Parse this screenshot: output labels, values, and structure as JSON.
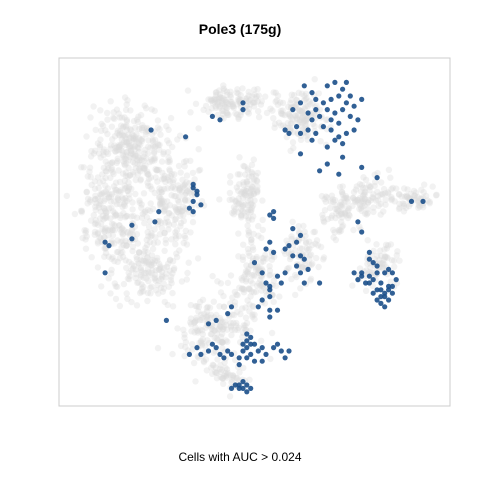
{
  "chart_data": {
    "type": "scatter",
    "title": "Pole3 (175g)",
    "xlabel": "Cells with AUC > 0.024",
    "ylabel": "",
    "xlim": [
      0,
      100
    ],
    "ylim": [
      0,
      100
    ],
    "grid": false,
    "colors": {
      "background_points": "#d9d9d9",
      "highlight_points": "#1b4f8a",
      "frame": "#cccccc"
    },
    "background_clusters": [
      {
        "cx": 18,
        "cy": 75,
        "rx": 10,
        "ry": 13,
        "n": 260
      },
      {
        "cx": 12,
        "cy": 55,
        "rx": 8,
        "ry": 16,
        "n": 220
      },
      {
        "cx": 28,
        "cy": 60,
        "rx": 8,
        "ry": 16,
        "n": 200
      },
      {
        "cx": 22,
        "cy": 38,
        "rx": 9,
        "ry": 10,
        "n": 140
      },
      {
        "cx": 44,
        "cy": 88,
        "rx": 8,
        "ry": 5,
        "n": 120
      },
      {
        "cx": 62,
        "cy": 84,
        "rx": 8,
        "ry": 7,
        "n": 140
      },
      {
        "cx": 48,
        "cy": 60,
        "rx": 4,
        "ry": 10,
        "n": 110
      },
      {
        "cx": 50,
        "cy": 38,
        "rx": 6,
        "ry": 10,
        "n": 120
      },
      {
        "cx": 40,
        "cy": 22,
        "rx": 11,
        "ry": 9,
        "n": 170
      },
      {
        "cx": 42,
        "cy": 8,
        "rx": 5,
        "ry": 4,
        "n": 50
      },
      {
        "cx": 62,
        "cy": 44,
        "rx": 5,
        "ry": 9,
        "n": 80
      },
      {
        "cx": 72,
        "cy": 55,
        "rx": 5,
        "ry": 7,
        "n": 60
      },
      {
        "cx": 80,
        "cy": 60,
        "rx": 8,
        "ry": 5,
        "n": 100
      },
      {
        "cx": 92,
        "cy": 60,
        "rx": 6,
        "ry": 3,
        "n": 50
      },
      {
        "cx": 82,
        "cy": 40,
        "rx": 6,
        "ry": 6,
        "n": 70
      }
    ],
    "highlight_points": [
      [
        63,
        93
      ],
      [
        65,
        91
      ],
      [
        66,
        89
      ],
      [
        68,
        88
      ],
      [
        70,
        89
      ],
      [
        72,
        90
      ],
      [
        73,
        92
      ],
      [
        74,
        88
      ],
      [
        76,
        87
      ],
      [
        73,
        86
      ],
      [
        71,
        85
      ],
      [
        69,
        86
      ],
      [
        67,
        84
      ],
      [
        65,
        83
      ],
      [
        64,
        85
      ],
      [
        66,
        86
      ],
      [
        70,
        83
      ],
      [
        72,
        82
      ],
      [
        75,
        84
      ],
      [
        77,
        83
      ],
      [
        76,
        80
      ],
      [
        74,
        79
      ],
      [
        72,
        78
      ],
      [
        70,
        80
      ],
      [
        68,
        81
      ],
      [
        64,
        80
      ],
      [
        62,
        79
      ],
      [
        61,
        81
      ],
      [
        59,
        79
      ],
      [
        58,
        80
      ],
      [
        60,
        86
      ],
      [
        62,
        88
      ],
      [
        69,
        93
      ],
      [
        71,
        94
      ],
      [
        74,
        94
      ],
      [
        75,
        90
      ],
      [
        78,
        89
      ],
      [
        71,
        77
      ],
      [
        73,
        76
      ],
      [
        69,
        75
      ],
      [
        66,
        79
      ],
      [
        65,
        77
      ],
      [
        62,
        73
      ],
      [
        73,
        72
      ],
      [
        78,
        69
      ],
      [
        69,
        70
      ],
      [
        67,
        68
      ],
      [
        72,
        67
      ],
      [
        23,
        80
      ],
      [
        32,
        78
      ],
      [
        39,
        84
      ],
      [
        47,
        86
      ],
      [
        47,
        88
      ],
      [
        41,
        83
      ],
      [
        34,
        64
      ],
      [
        35,
        62
      ],
      [
        34,
        59
      ],
      [
        33,
        57
      ],
      [
        34,
        56
      ],
      [
        36,
        58
      ],
      [
        35,
        61
      ],
      [
        34,
        63
      ],
      [
        25,
        56
      ],
      [
        24,
        53
      ],
      [
        18,
        52
      ],
      [
        18,
        48
      ],
      [
        11,
        47
      ],
      [
        12,
        46
      ],
      [
        11,
        38
      ],
      [
        55,
        56
      ],
      [
        54,
        55
      ],
      [
        55,
        54
      ],
      [
        54,
        47
      ],
      [
        53,
        45
      ],
      [
        60,
        51
      ],
      [
        62,
        49
      ],
      [
        61,
        47
      ],
      [
        59,
        46
      ],
      [
        58,
        45
      ],
      [
        60,
        43
      ],
      [
        62,
        43
      ],
      [
        61,
        40
      ],
      [
        63,
        42
      ],
      [
        62,
        38
      ],
      [
        58,
        38
      ],
      [
        55,
        44
      ],
      [
        50,
        41
      ],
      [
        52,
        38
      ],
      [
        56,
        37
      ],
      [
        57,
        35
      ],
      [
        64,
        39
      ],
      [
        63,
        35
      ],
      [
        67,
        35
      ],
      [
        77,
        53
      ],
      [
        78,
        50
      ],
      [
        82,
        66
      ],
      [
        91,
        59
      ],
      [
        94,
        59
      ],
      [
        80,
        44
      ],
      [
        80,
        42
      ],
      [
        81,
        41
      ],
      [
        82,
        40
      ],
      [
        78,
        38
      ],
      [
        76,
        38
      ],
      [
        77,
        36
      ],
      [
        79,
        35
      ],
      [
        80,
        35
      ],
      [
        81,
        36
      ],
      [
        82,
        38
      ],
      [
        84,
        38
      ],
      [
        85,
        39
      ],
      [
        86,
        38
      ],
      [
        87,
        36
      ],
      [
        86,
        34
      ],
      [
        85,
        33
      ],
      [
        84,
        32
      ],
      [
        83,
        31
      ],
      [
        82,
        30
      ],
      [
        84,
        31
      ],
      [
        86,
        32
      ],
      [
        85,
        34
      ],
      [
        83,
        35
      ],
      [
        82,
        33
      ],
      [
        81,
        32
      ],
      [
        83,
        29
      ],
      [
        85,
        30
      ],
      [
        84,
        28
      ],
      [
        83,
        33
      ],
      [
        78,
        37
      ],
      [
        80,
        37
      ],
      [
        53,
        35
      ],
      [
        54,
        34
      ],
      [
        54,
        33
      ],
      [
        54,
        31
      ],
      [
        52,
        30
      ],
      [
        51,
        28
      ],
      [
        54,
        27
      ],
      [
        56,
        27
      ],
      [
        54,
        25
      ],
      [
        44,
        28
      ],
      [
        43,
        26
      ],
      [
        40,
        24
      ],
      [
        38,
        23
      ],
      [
        27,
        24
      ],
      [
        33,
        14
      ],
      [
        35,
        16
      ],
      [
        36,
        14
      ],
      [
        38,
        15
      ],
      [
        39,
        17
      ],
      [
        40,
        16
      ],
      [
        41,
        14
      ],
      [
        42,
        13
      ],
      [
        43,
        15
      ],
      [
        44,
        14
      ],
      [
        46,
        13
      ],
      [
        47,
        15
      ],
      [
        48,
        16
      ],
      [
        49,
        14
      ],
      [
        49,
        17
      ],
      [
        51,
        15
      ],
      [
        52,
        16
      ],
      [
        53,
        14
      ],
      [
        55,
        16
      ],
      [
        56,
        17
      ],
      [
        57,
        15
      ],
      [
        58,
        13
      ],
      [
        59,
        15
      ],
      [
        48,
        13
      ],
      [
        50,
        12
      ],
      [
        46,
        11
      ],
      [
        52,
        12
      ],
      [
        47,
        17
      ],
      [
        48,
        18
      ],
      [
        49,
        19
      ],
      [
        50,
        17
      ],
      [
        48,
        20
      ],
      [
        45,
        5
      ],
      [
        46,
        5
      ],
      [
        47,
        4
      ],
      [
        48,
        5
      ],
      [
        46,
        4
      ],
      [
        49,
        4
      ],
      [
        47,
        6
      ],
      [
        44,
        4
      ],
      [
        48,
        3
      ]
    ]
  }
}
